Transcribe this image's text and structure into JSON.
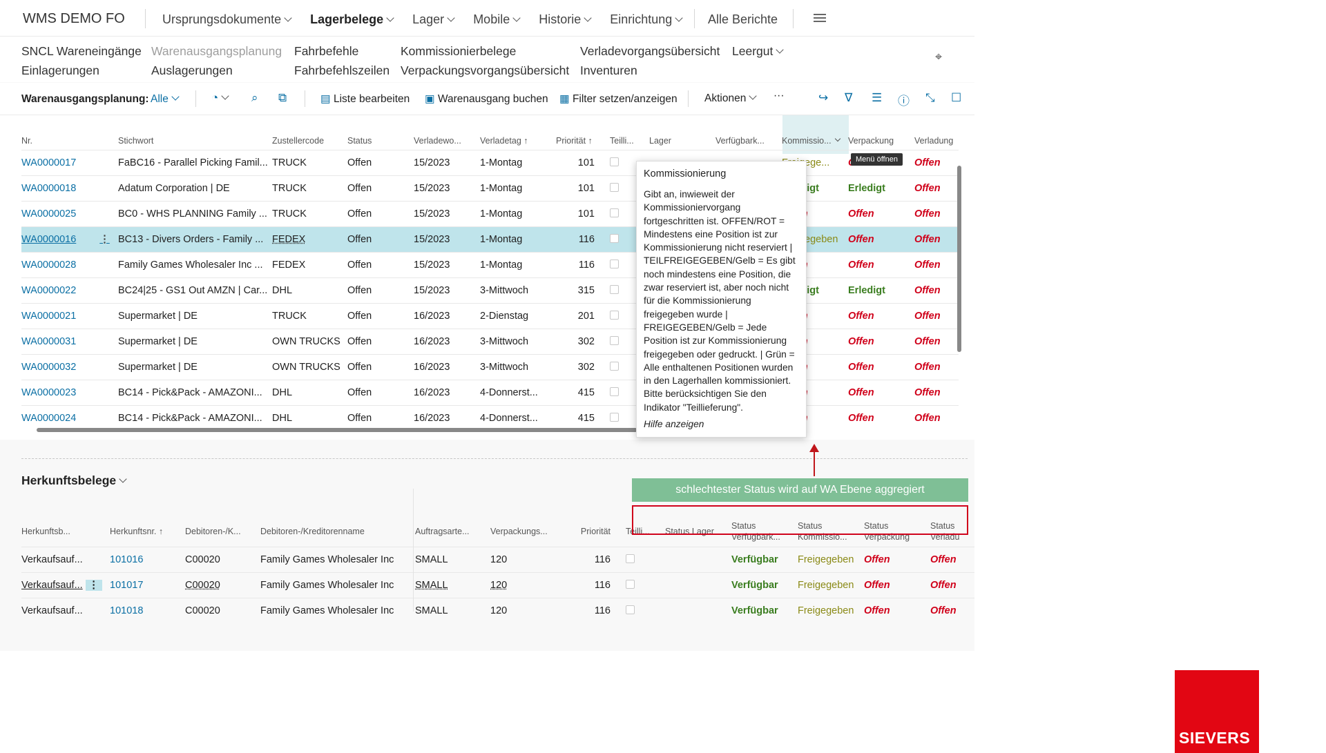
{
  "app": {
    "brand": "WMS DEMO FO"
  },
  "nav": {
    "menu": [
      "Ursprungsdokumente",
      "Lagerbelege",
      "Lager",
      "Mobile",
      "Historie",
      "Einrichtung"
    ],
    "all_reports": "Alle Berichte"
  },
  "links": {
    "col1": [
      "SNCL Wareneingänge",
      "Einlagerungen"
    ],
    "col2": [
      "Warenausgangsplanung",
      "Auslagerungen"
    ],
    "col3": [
      "Fahrbefehle",
      "Fahrbefehlszeilen"
    ],
    "col4": [
      "Kommissionierbelege",
      "Verpackungsvorgangsübersicht"
    ],
    "col5": [
      "Verladevorgangsübersicht",
      "Inventuren"
    ],
    "col6": [
      "Leergut"
    ]
  },
  "actionbar": {
    "label": "Warenausgangsplanung:",
    "filter": "Alle",
    "edit_list": "Liste bearbeiten",
    "post_shipment": "Warenausgang buchen",
    "set_filter": "Filter setzen/anzeigen",
    "actions": "Aktionen",
    "more": "···"
  },
  "grid": {
    "headers": [
      "Nr.",
      "Stichwort",
      "Zustellercode",
      "Status",
      "Verladewo...",
      "Verladetag ↑",
      "Priorität ↑",
      "Teilli...",
      "Lager",
      "Verfügbark...",
      "Kommissio...",
      "Verpackung",
      "Verladung"
    ],
    "rows": [
      {
        "nr": "WA0000017",
        "stichwort": "FaBC16 - Parallel Picking Famil...",
        "code": "TRUCK",
        "status": "Offen",
        "woche": "15/2023",
        "tag": "1-Montag",
        "prio": "101",
        "komm": "Freigege...",
        "verp": "Offen",
        "verl": "Offen"
      },
      {
        "nr": "WA0000018",
        "stichwort": "Adatum Corporation | DE",
        "code": "TRUCK",
        "status": "Offen",
        "woche": "15/2023",
        "tag": "1-Montag",
        "prio": "101",
        "komm": "Erledigt",
        "verp": "Erledigt",
        "verl": "Offen"
      },
      {
        "nr": "WA0000025",
        "stichwort": "BC0 - WHS PLANNING Family ...",
        "code": "TRUCK",
        "status": "Offen",
        "woche": "15/2023",
        "tag": "1-Montag",
        "prio": "101",
        "komm": "Offen",
        "verp": "Offen",
        "verl": "Offen"
      },
      {
        "nr": "WA0000016",
        "stichwort": "BC13 - Divers Orders - Family ...",
        "code": "FEDEX",
        "status": "Offen",
        "woche": "15/2023",
        "tag": "1-Montag",
        "prio": "116",
        "komm": "Freigegeben",
        "verp": "Offen",
        "verl": "Offen"
      },
      {
        "nr": "WA0000028",
        "stichwort": "Family Games Wholesaler Inc  ...",
        "code": "FEDEX",
        "status": "Offen",
        "woche": "15/2023",
        "tag": "1-Montag",
        "prio": "116",
        "komm": "Offen",
        "verp": "Offen",
        "verl": "Offen"
      },
      {
        "nr": "WA0000022",
        "stichwort": "BC24|25 - GS1 Out AMZN | Car...",
        "code": "DHL",
        "status": "Offen",
        "woche": "15/2023",
        "tag": "3-Mittwoch",
        "prio": "315",
        "komm": "Erledigt",
        "verp": "Erledigt",
        "verl": "Offen"
      },
      {
        "nr": "WA0000021",
        "stichwort": "Supermarket  | DE",
        "code": "TRUCK",
        "status": "Offen",
        "woche": "16/2023",
        "tag": "2-Dienstag",
        "prio": "201",
        "komm": "Offen",
        "verp": "Offen",
        "verl": "Offen"
      },
      {
        "nr": "WA0000031",
        "stichwort": "Supermarket  | DE",
        "code": "OWN TRUCKS",
        "status": "Offen",
        "woche": "16/2023",
        "tag": "3-Mittwoch",
        "prio": "302",
        "komm": "Offen",
        "verp": "Offen",
        "verl": "Offen"
      },
      {
        "nr": "WA0000032",
        "stichwort": "Supermarket  | DE",
        "code": "OWN TRUCKS",
        "status": "Offen",
        "woche": "16/2023",
        "tag": "3-Mittwoch",
        "prio": "302",
        "komm": "Offen",
        "verp": "Offen",
        "verl": "Offen"
      },
      {
        "nr": "WA0000023",
        "stichwort": "BC14 - Pick&Pack - AMAZONI...",
        "code": "DHL",
        "status": "Offen",
        "woche": "16/2023",
        "tag": "4-Donnerst...",
        "prio": "415",
        "komm": "Offen",
        "verp": "Offen",
        "verl": "Offen"
      },
      {
        "nr": "WA0000024",
        "stichwort": "BC14 - Pick&Pack - AMAZONI...",
        "code": "DHL",
        "status": "Offen",
        "woche": "16/2023",
        "tag": "4-Donnerst...",
        "prio": "415",
        "komm": "Offen",
        "verp": "Offen",
        "verl": "Offen"
      }
    ]
  },
  "tooltip_menu": "Menü öffnen",
  "popup": {
    "title": "Kommissionierung",
    "body": "Gibt an, inwieweit der Kommissioniervorgang fortgeschritten ist. OFFEN/ROT = Mindestens eine Position ist zur Kommissionierung nicht reserviert | TEILFREIGEGEBEN/Gelb = Es gibt noch mindestens eine Position, die zwar reserviert ist, aber noch nicht für die Kommissionierung freigegeben wurde | FREIGEGEBEN/Gelb = Jede Position ist zur Kommissionierung freigegeben oder gedruckt. | Grün = Alle enthaltenen Positionen wurden in den Lagerhallen kommissioniert. Bitte berücksichtigen Sie den Indikator \"Teillieferung\".",
    "help": "Hilfe anzeigen"
  },
  "lower": {
    "title": "Herkunftsbelege",
    "banner": "schlechtester Status wird auf WA Ebene aggregiert",
    "headers": [
      "Herkunftsb...",
      "Herkunftsnr. ↑",
      "Debitoren-/K...",
      "Debitoren-/Kreditorenname",
      "Auftragsarte...",
      "Verpackungs...",
      "Priorität",
      "Teilli...",
      "Status Lager",
      "Status Verfügbark...",
      "Status Kommissio...",
      "Status Verpackung",
      "Status Verladu"
    ],
    "rows": [
      {
        "art": "Verkaufsauf...",
        "nr": "101016",
        "deb": "C00020",
        "name": "Family Games Wholesaler Inc",
        "auftrag": "SMALL",
        "verp": "120",
        "prio": "116",
        "verf": "Verfügbar",
        "komm": "Freigegeben",
        "verpst": "Offen",
        "verl": "Offen"
      },
      {
        "art": "Verkaufsauf...",
        "nr": "101017",
        "deb": "C00020",
        "name": "Family Games Wholesaler Inc",
        "auftrag": "SMALL",
        "verp": "120",
        "prio": "116",
        "verf": "Verfügbar",
        "komm": "Freigegeben",
        "verpst": "Offen",
        "verl": "Offen"
      },
      {
        "art": "Verkaufsauf...",
        "nr": "101018",
        "deb": "C00020",
        "name": "Family Games Wholesaler Inc",
        "auftrag": "SMALL",
        "verp": "120",
        "prio": "116",
        "verf": "Verfügbar",
        "komm": "Freigegeben",
        "verpst": "Offen",
        "verl": "Offen"
      }
    ]
  },
  "logo": "SIEVERS",
  "colors": {
    "link": "#0b6fa4",
    "red": "#d0021b",
    "green": "#3a7d1f",
    "selected_row": "#bfe4eb",
    "banner": "#7fbf96",
    "logo": "#e20613"
  }
}
